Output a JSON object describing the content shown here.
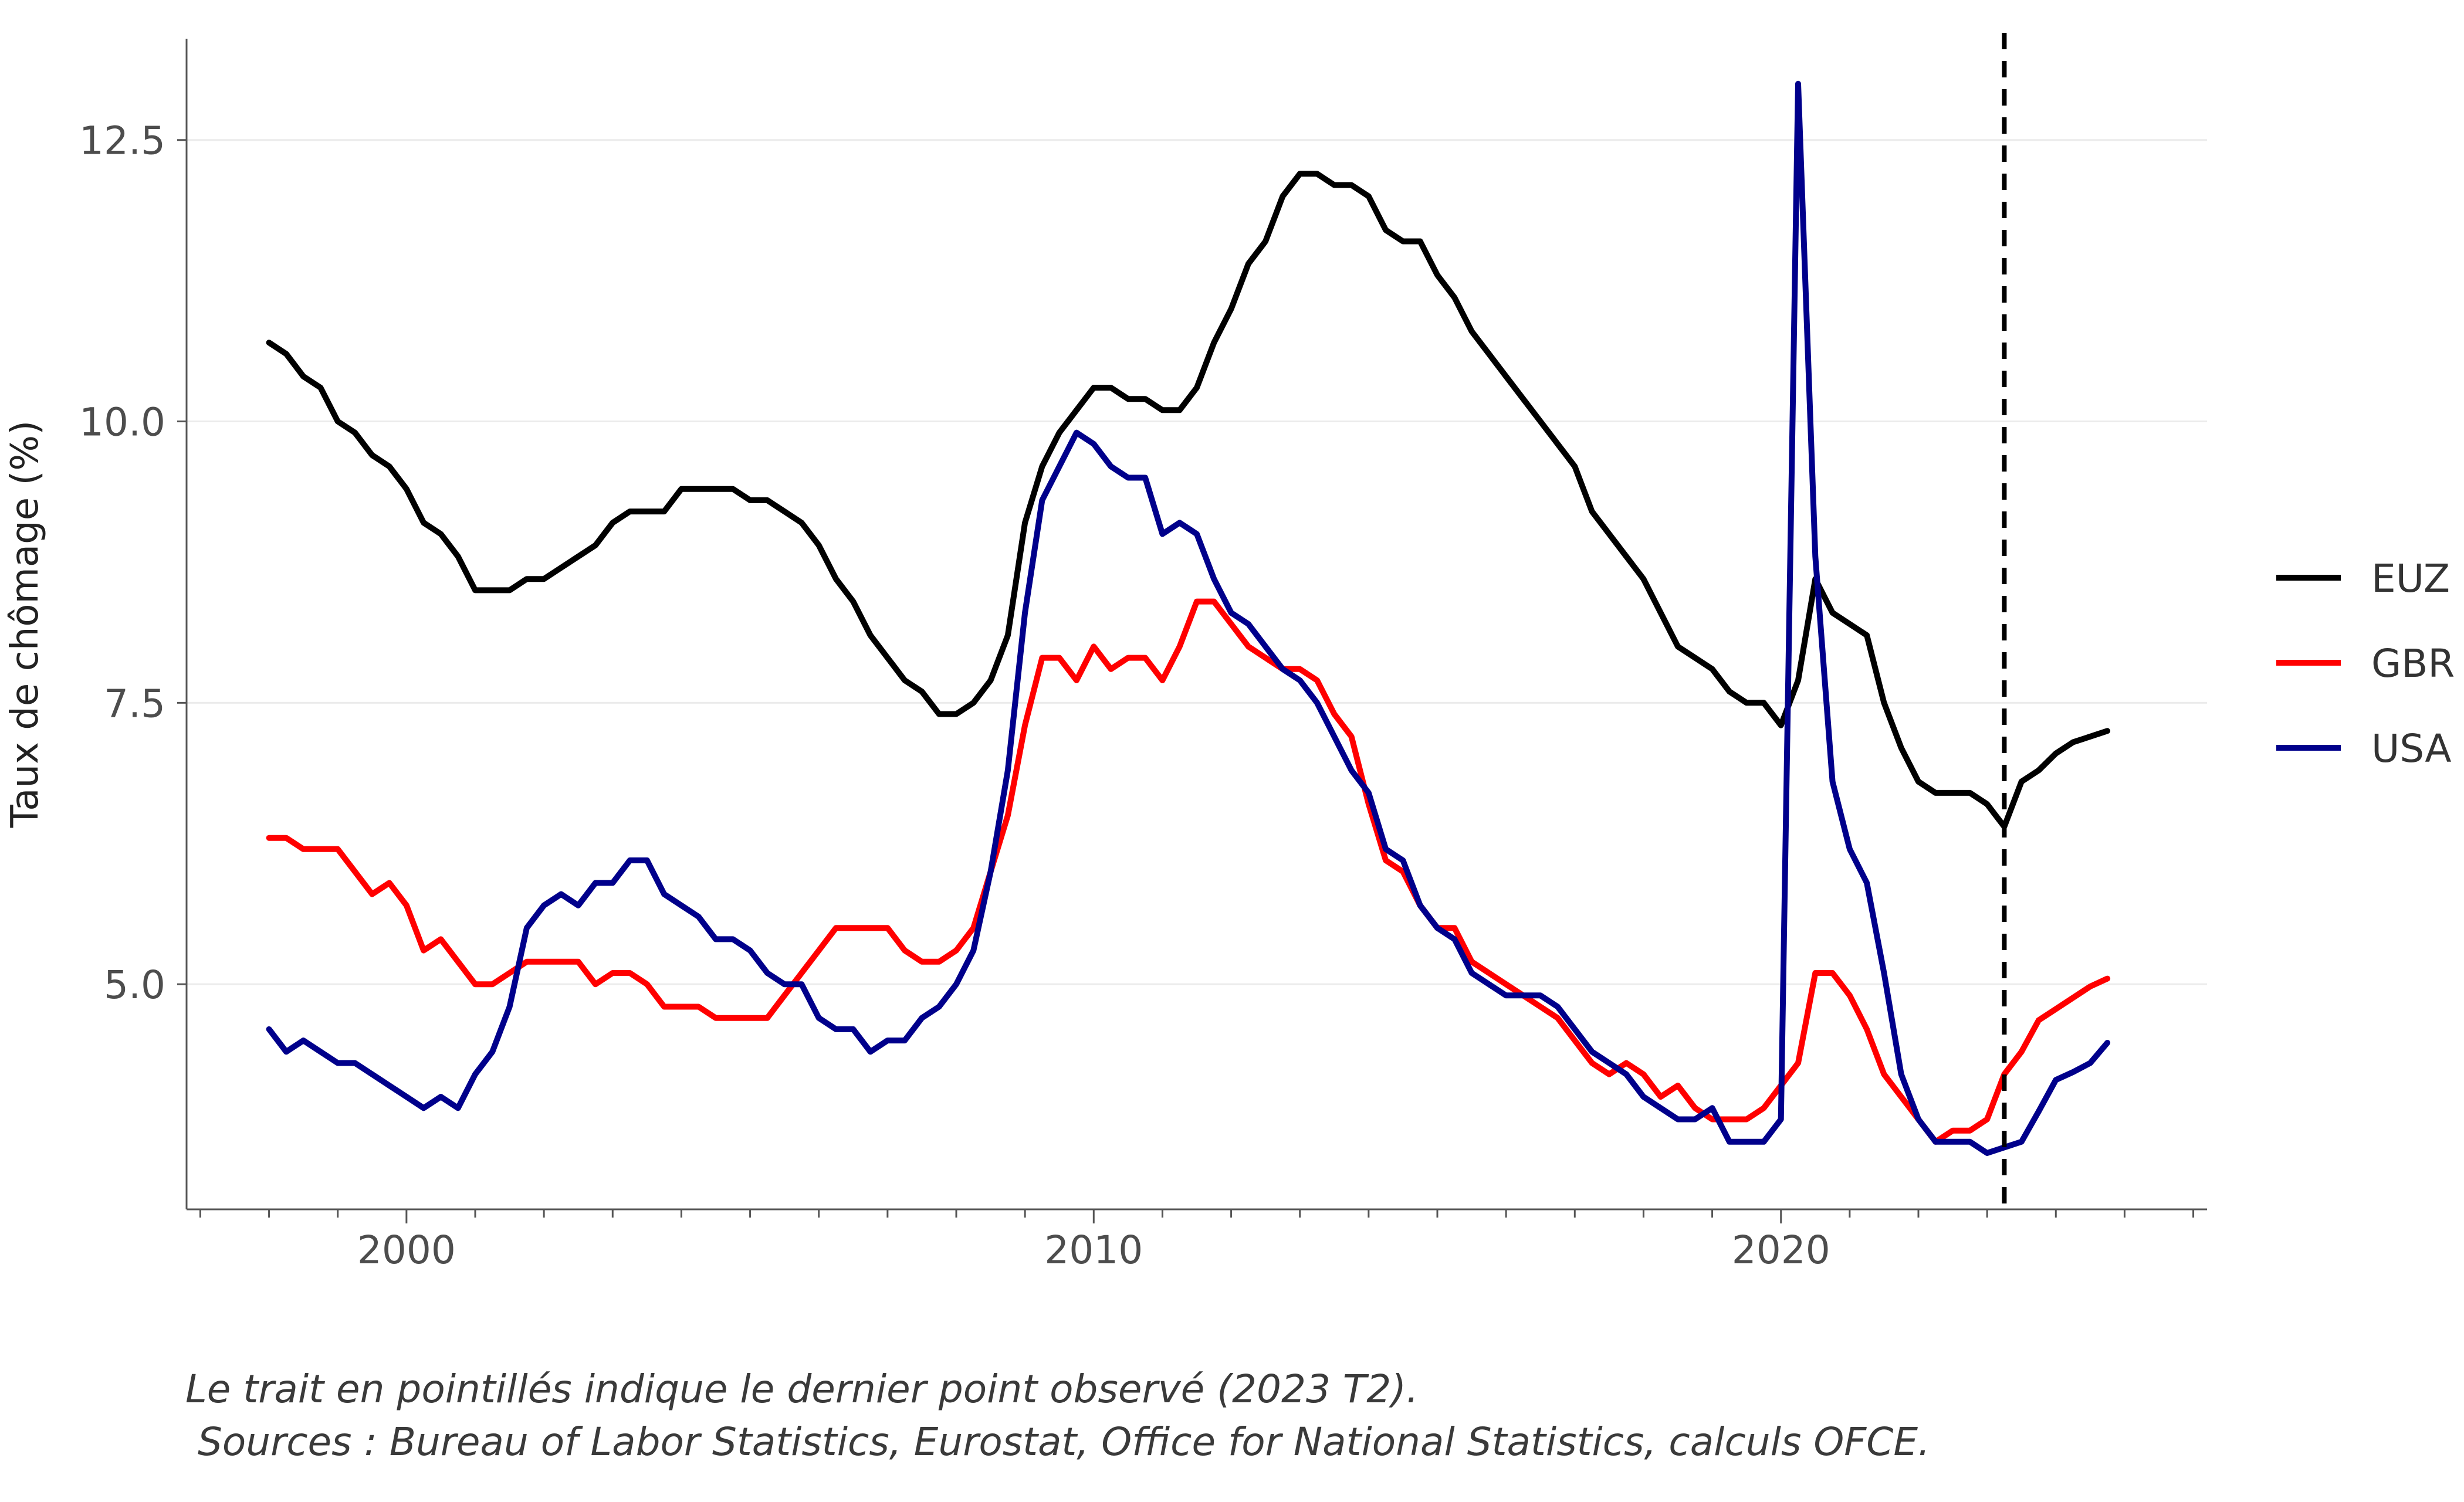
{
  "chart_data": {
    "type": "line",
    "ylabel": "Taux de chômage (%)",
    "xlabel": "",
    "xlim": [
      1996.8,
      2026.2
    ],
    "ylim": [
      3.0,
      13.4
    ],
    "x_ticks": [
      {
        "value": 2000,
        "label": "2000"
      },
      {
        "value": 2010,
        "label": "2010"
      },
      {
        "value": 2020,
        "label": "2020"
      }
    ],
    "y_ticks": [
      {
        "value": 5.0,
        "label": "5.0"
      },
      {
        "value": 7.5,
        "label": "7.5"
      },
      {
        "value": 10.0,
        "label": "10.0"
      },
      {
        "value": 12.5,
        "label": "12.5"
      }
    ],
    "grid": "horizontal",
    "legend_position": "right",
    "vline": {
      "x": 2023.25,
      "style": "dashed"
    },
    "x_start": 1998.0,
    "x_step": 0.25,
    "series": [
      {
        "name": "EUZ",
        "color": "#000000",
        "values": [
          10.7,
          10.6,
          10.4,
          10.3,
          10.0,
          9.9,
          9.7,
          9.6,
          9.4,
          9.1,
          9.0,
          8.8,
          8.5,
          8.5,
          8.5,
          8.6,
          8.6,
          8.7,
          8.8,
          8.9,
          9.1,
          9.2,
          9.2,
          9.2,
          9.4,
          9.4,
          9.4,
          9.4,
          9.3,
          9.3,
          9.2,
          9.1,
          8.9,
          8.6,
          8.4,
          8.1,
          7.9,
          7.7,
          7.6,
          7.4,
          7.4,
          7.5,
          7.7,
          8.1,
          9.1,
          9.6,
          9.9,
          10.1,
          10.3,
          10.3,
          10.2,
          10.2,
          10.1,
          10.1,
          10.3,
          10.7,
          11.0,
          11.4,
          11.6,
          12.0,
          12.2,
          12.2,
          12.1,
          12.1,
          12.0,
          11.7,
          11.6,
          11.6,
          11.3,
          11.1,
          10.8,
          10.6,
          10.4,
          10.2,
          10.0,
          9.8,
          9.6,
          9.2,
          9.0,
          8.8,
          8.6,
          8.3,
          8.0,
          7.9,
          7.8,
          7.6,
          7.5,
          7.5,
          7.3,
          7.7,
          8.6,
          8.3,
          8.2,
          8.1,
          7.5,
          7.1,
          6.8,
          6.7,
          6.7,
          6.7,
          6.6,
          6.4,
          6.8,
          6.9,
          7.05,
          7.15,
          7.2,
          7.25
        ]
      },
      {
        "name": "GBR",
        "color": "#ff0000",
        "values": [
          6.3,
          6.3,
          6.2,
          6.2,
          6.2,
          6.0,
          5.8,
          5.9,
          5.7,
          5.3,
          5.4,
          5.2,
          5.0,
          5.0,
          5.1,
          5.2,
          5.2,
          5.2,
          5.2,
          5.0,
          5.1,
          5.1,
          5.0,
          4.8,
          4.8,
          4.8,
          4.7,
          4.7,
          4.7,
          4.7,
          4.9,
          5.1,
          5.3,
          5.5,
          5.5,
          5.5,
          5.5,
          5.3,
          5.2,
          5.2,
          5.3,
          5.5,
          6.0,
          6.5,
          7.3,
          7.9,
          7.9,
          7.7,
          8.0,
          7.8,
          7.9,
          7.9,
          7.7,
          8.0,
          8.4,
          8.4,
          8.2,
          8.0,
          7.9,
          7.8,
          7.8,
          7.7,
          7.4,
          7.2,
          6.6,
          6.1,
          6.0,
          5.7,
          5.5,
          5.5,
          5.2,
          5.1,
          5.0,
          4.9,
          4.8,
          4.7,
          4.5,
          4.3,
          4.2,
          4.3,
          4.2,
          4.0,
          4.1,
          3.9,
          3.8,
          3.8,
          3.8,
          3.9,
          4.1,
          4.3,
          5.1,
          5.1,
          4.9,
          4.6,
          4.2,
          4.0,
          3.8,
          3.6,
          3.7,
          3.7,
          3.8,
          4.2,
          4.4,
          4.68,
          4.78,
          4.88,
          4.98,
          5.05
        ]
      },
      {
        "name": "USA",
        "color": "#00008b",
        "values": [
          4.6,
          4.4,
          4.5,
          4.4,
          4.3,
          4.3,
          4.2,
          4.1,
          4.0,
          3.9,
          4.0,
          3.9,
          4.2,
          4.4,
          4.8,
          5.5,
          5.7,
          5.8,
          5.7,
          5.9,
          5.9,
          6.1,
          6.1,
          5.8,
          5.7,
          5.6,
          5.4,
          5.4,
          5.3,
          5.1,
          5.0,
          5.0,
          4.7,
          4.6,
          4.6,
          4.4,
          4.5,
          4.5,
          4.7,
          4.8,
          5.0,
          5.3,
          6.0,
          6.9,
          8.3,
          9.3,
          9.6,
          9.9,
          9.8,
          9.6,
          9.5,
          9.5,
          9.0,
          9.1,
          9.0,
          8.6,
          8.3,
          8.2,
          8.0,
          7.8,
          7.7,
          7.5,
          7.2,
          6.9,
          6.7,
          6.2,
          6.1,
          5.7,
          5.5,
          5.4,
          5.1,
          5.0,
          4.9,
          4.9,
          4.9,
          4.8,
          4.6,
          4.4,
          4.3,
          4.2,
          4.0,
          3.9,
          3.8,
          3.8,
          3.9,
          3.6,
          3.6,
          3.6,
          3.8,
          13.0,
          8.8,
          6.8,
          6.2,
          5.9,
          5.1,
          4.2,
          3.8,
          3.6,
          3.6,
          3.6,
          3.5,
          3.55,
          3.6,
          3.87,
          4.15,
          4.22,
          4.3,
          4.48
        ]
      }
    ]
  },
  "captions": {
    "line1": "Le trait en pointillés indique le dernier point observé (2023 T2).",
    "line2": " Sources : Bureau of Labor Statistics, Eurostat, Office for National Statistics, calculs OFCE."
  }
}
